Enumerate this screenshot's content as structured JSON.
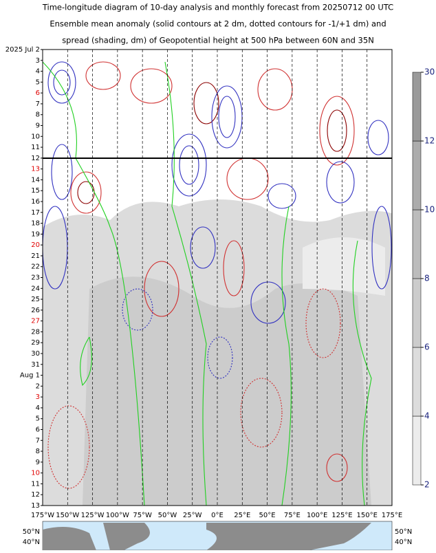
{
  "chart_data": {
    "type": "hovmoller",
    "title_lines": [
      "Time-longitude diagram of 10-day analysis and monthly forecast from 20250712 00 UTC",
      "Ensemble mean anomaly (solid contours at 2 dm, dotted contours for -1/+1 dm) and",
      "spread (shading, dm) of Geopotential height at 500 hPa between 60N and 35N"
    ],
    "categories": [
      "2025 Jul 2",
      "3",
      "4",
      "5",
      "6",
      "7",
      "8",
      "9",
      "10",
      "11",
      "12",
      "13",
      "14",
      "15",
      "16",
      "17",
      "18",
      "19",
      "20",
      "21",
      "22",
      "23",
      "24",
      "25",
      "26",
      "27",
      "28",
      "29",
      "30",
      "31",
      "Aug 1",
      "2",
      "3",
      "4",
      "5",
      "6",
      "7",
      "8",
      "9",
      "10",
      "11",
      "12",
      "13"
    ],
    "category_colors": [
      "#000",
      "#000",
      "#000",
      "#000",
      "#e00000",
      "#000",
      "#000",
      "#000",
      "#000",
      "#000",
      "#000",
      "#e00000",
      "#000",
      "#000",
      "#000",
      "#000",
      "#000",
      "#000",
      "#e00000",
      "#000",
      "#000",
      "#000",
      "#000",
      "#000",
      "#000",
      "#e00000",
      "#000",
      "#000",
      "#000",
      "#000",
      "#000",
      "#000",
      "#e00000",
      "#000",
      "#000",
      "#000",
      "#000",
      "#000",
      "#000",
      "#e00000",
      "#000",
      "#000",
      "#000"
    ],
    "xlim": [
      -175,
      175
    ],
    "xticks": [
      {
        "value": -175,
        "label": "175°W"
      },
      {
        "value": -150,
        "label": "150°W"
      },
      {
        "value": -125,
        "label": "125°W"
      },
      {
        "value": -100,
        "label": "100°W"
      },
      {
        "value": -75,
        "label": "75°W"
      },
      {
        "value": -50,
        "label": "50°W"
      },
      {
        "value": -25,
        "label": "25°W"
      },
      {
        "value": 0,
        "label": "0°E"
      },
      {
        "value": 25,
        "label": "25°E"
      },
      {
        "value": 50,
        "label": "50°E"
      },
      {
        "value": 75,
        "label": "75°E"
      },
      {
        "value": 100,
        "label": "100°E"
      },
      {
        "value": 125,
        "label": "125°E"
      },
      {
        "value": 150,
        "label": "150°E"
      },
      {
        "value": 175,
        "label": "175°E"
      }
    ],
    "colorbar": {
      "ticks": [
        2,
        4,
        6,
        8,
        10,
        12,
        30
      ],
      "colors": [
        "#ececec",
        "#dcdcdc",
        "#cccccc",
        "#bcbcbc",
        "#acacac",
        "#9a9a9a"
      ],
      "label_color": "#1a237e"
    },
    "map": {
      "labels": [
        "50°N",
        "40°N"
      ]
    }
  }
}
